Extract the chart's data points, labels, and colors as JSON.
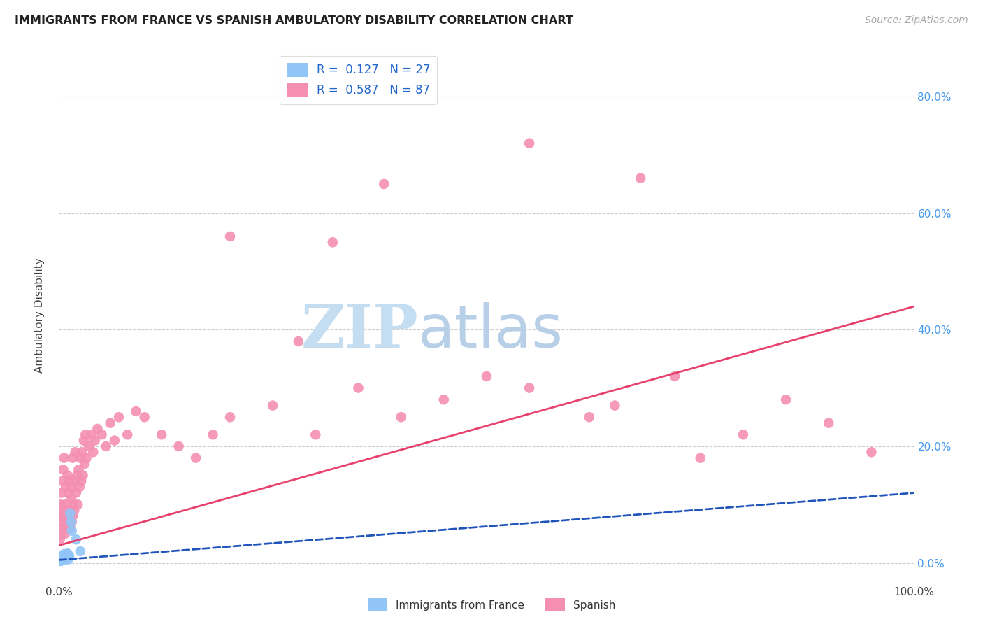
{
  "title": "IMMIGRANTS FROM FRANCE VS SPANISH AMBULATORY DISABILITY CORRELATION CHART",
  "source": "Source: ZipAtlas.com",
  "ylabel": "Ambulatory Disability",
  "legend_france_r": "0.127",
  "legend_france_n": "27",
  "legend_spanish_r": "0.587",
  "legend_spanish_n": "87",
  "france_color": "#92c5f7",
  "spanish_color": "#f48fb1",
  "france_line_color": "#2255bb",
  "spanish_line_color": "#e8406c",
  "france_x": [
    0.001,
    0.002,
    0.002,
    0.003,
    0.003,
    0.004,
    0.004,
    0.005,
    0.005,
    0.006,
    0.006,
    0.007,
    0.007,
    0.008,
    0.008,
    0.009,
    0.009,
    0.01,
    0.01,
    0.011,
    0.011,
    0.012,
    0.013,
    0.014,
    0.015,
    0.02,
    0.025
  ],
  "france_y": [
    0.005,
    0.003,
    0.008,
    0.004,
    0.009,
    0.006,
    0.012,
    0.005,
    0.01,
    0.007,
    0.015,
    0.008,
    0.013,
    0.006,
    0.011,
    0.009,
    0.014,
    0.008,
    0.016,
    0.01,
    0.006,
    0.012,
    0.085,
    0.07,
    0.055,
    0.04,
    0.02
  ],
  "spanish_x": [
    0.001,
    0.001,
    0.002,
    0.002,
    0.003,
    0.003,
    0.004,
    0.004,
    0.005,
    0.005,
    0.006,
    0.006,
    0.007,
    0.007,
    0.008,
    0.008,
    0.009,
    0.009,
    0.01,
    0.01,
    0.011,
    0.011,
    0.012,
    0.012,
    0.013,
    0.013,
    0.014,
    0.015,
    0.015,
    0.016,
    0.016,
    0.017,
    0.018,
    0.018,
    0.019,
    0.02,
    0.021,
    0.022,
    0.023,
    0.024,
    0.025,
    0.026,
    0.027,
    0.028,
    0.029,
    0.03,
    0.031,
    0.032,
    0.035,
    0.038,
    0.04,
    0.042,
    0.045,
    0.05,
    0.055,
    0.06,
    0.065,
    0.07,
    0.08,
    0.09,
    0.1,
    0.12,
    0.14,
    0.16,
    0.18,
    0.2,
    0.25,
    0.3,
    0.35,
    0.4,
    0.45,
    0.5,
    0.55,
    0.62,
    0.65,
    0.72,
    0.75,
    0.8,
    0.85,
    0.9,
    0.95,
    0.2,
    0.32,
    0.38,
    0.28,
    0.55,
    0.68
  ],
  "spanish_y": [
    0.04,
    0.08,
    0.05,
    0.1,
    0.06,
    0.12,
    0.07,
    0.14,
    0.08,
    0.16,
    0.09,
    0.18,
    0.1,
    0.05,
    0.07,
    0.13,
    0.08,
    0.06,
    0.09,
    0.15,
    0.07,
    0.12,
    0.08,
    0.14,
    0.09,
    0.06,
    0.11,
    0.07,
    0.13,
    0.08,
    0.18,
    0.1,
    0.14,
    0.09,
    0.19,
    0.12,
    0.15,
    0.1,
    0.16,
    0.13,
    0.18,
    0.14,
    0.19,
    0.15,
    0.21,
    0.17,
    0.22,
    0.18,
    0.2,
    0.22,
    0.19,
    0.21,
    0.23,
    0.22,
    0.2,
    0.24,
    0.21,
    0.25,
    0.22,
    0.26,
    0.25,
    0.22,
    0.2,
    0.18,
    0.22,
    0.25,
    0.27,
    0.22,
    0.3,
    0.25,
    0.28,
    0.32,
    0.3,
    0.25,
    0.27,
    0.32,
    0.18,
    0.22,
    0.28,
    0.24,
    0.19,
    0.56,
    0.55,
    0.65,
    0.38,
    0.72,
    0.66
  ],
  "background_color": "#ffffff",
  "grid_color": "#cccccc",
  "title_color": "#222222",
  "watermark_text": "ZIP",
  "watermark_text2": "atlas",
  "watermark_color": "#c8dff0",
  "france_line_x": [
    0.0,
    1.0
  ],
  "france_line_y": [
    0.005,
    0.12
  ],
  "france_line_dash": true,
  "spanish_line_x": [
    0.0,
    1.0
  ],
  "spanish_line_y": [
    0.03,
    0.44
  ],
  "spanish_line_dash": false,
  "xlim": [
    0.0,
    1.0
  ],
  "ylim": [
    -0.03,
    0.88
  ]
}
